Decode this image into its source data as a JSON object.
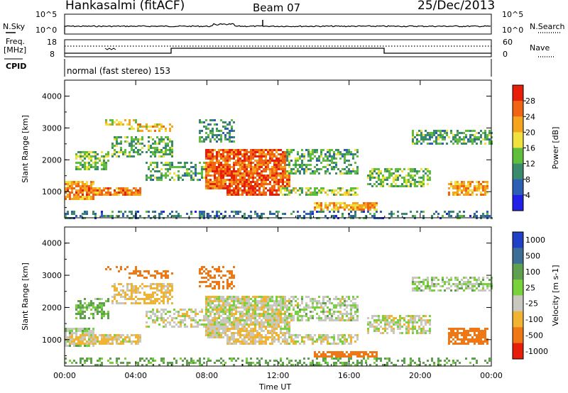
{
  "header": {
    "station": "Hankasalmi (fitACF)",
    "beam": "Beam 07",
    "date": "25/Dec/2013"
  },
  "noise_panel": {
    "left_label": "N.Sky",
    "right_label": "N.Search",
    "left_ticks": [
      "10^5",
      "10^0"
    ],
    "right_ticks": [
      "10^5",
      "10^0"
    ]
  },
  "freq_panel": {
    "left_label_line1": "Freq.",
    "left_label_line2": "[MHz]",
    "right_label": "Nave",
    "left_ticks": [
      "18",
      "8"
    ],
    "right_ticks": [
      "60",
      "0"
    ]
  },
  "cpid": {
    "label": "CPID",
    "program": "normal (fast stereo) 153"
  },
  "chart_data": [
    {
      "type": "heatmap",
      "parameter": "Power",
      "ylabel": "Slant Range [km]",
      "yticks": [
        "1000",
        "2000",
        "3000",
        "4000"
      ],
      "ylim": [
        180,
        4500
      ],
      "colorbar_label": "Power [dB]",
      "colorbar_ticks": [
        "4",
        "8",
        "12",
        "16",
        "20",
        "24",
        "28"
      ],
      "colors": [
        "#2020e6",
        "#2d5fb4",
        "#3c8a6e",
        "#5fbe3c",
        "#f0e13c",
        "#f5a41e",
        "#f06414",
        "#e61e0a"
      ]
    },
    {
      "type": "heatmap",
      "parameter": "Velocity",
      "ylabel": "Slant Range [km]",
      "yticks": [
        "1000",
        "2000",
        "3000",
        "4000"
      ],
      "ylim": [
        180,
        4500
      ],
      "colorbar_label": "Velocity [m s-1]",
      "colorbar_ticks": [
        "1000",
        "500",
        "100",
        "25",
        "-25",
        "-100",
        "-500",
        "-1000"
      ],
      "colors": [
        "#2040c8",
        "#3c6e96",
        "#5fa050",
        "#78d23c",
        "#c8c8c0",
        "#f0b432",
        "#f07814",
        "#e61e0a"
      ]
    }
  ],
  "time_axis": {
    "ticks": [
      "00:00",
      "04:00",
      "08:00",
      "12:00",
      "16:00",
      "20:00",
      "00:00"
    ],
    "label": "Time UT"
  }
}
